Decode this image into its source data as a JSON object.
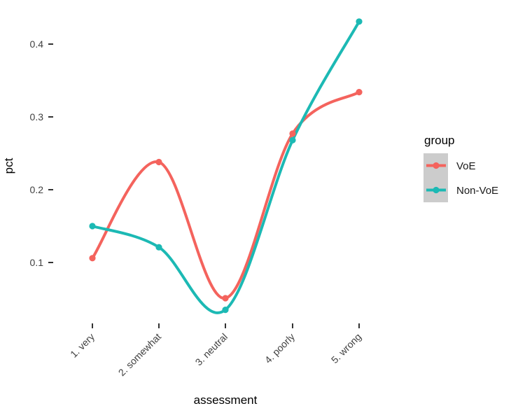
{
  "chart_data": {
    "type": "line",
    "title": "",
    "xlabel": "assessment",
    "ylabel": "pct",
    "smoothing": "spline",
    "grid": false,
    "categories": [
      "1. very",
      "2. somewhat",
      "3. neutral",
      "4. poorly",
      "5. wrong"
    ],
    "series": [
      {
        "name": "VoE",
        "color": "#F4635D",
        "values": [
          0.106,
          0.238,
          0.051,
          0.277,
          0.334
        ]
      },
      {
        "name": "Non-VoE",
        "color": "#1CB9B4",
        "values": [
          0.15,
          0.121,
          0.035,
          0.268,
          0.431
        ]
      }
    ],
    "y_ticks": [
      0.1,
      0.2,
      0.3,
      0.4
    ],
    "y_tick_labels": [
      "0.1",
      "0.2",
      "0.3",
      "0.4"
    ],
    "ylim": [
      0.03,
      0.44
    ],
    "legend": {
      "title": "group",
      "position": "right",
      "key_fill": "#CCCCCC"
    }
  }
}
